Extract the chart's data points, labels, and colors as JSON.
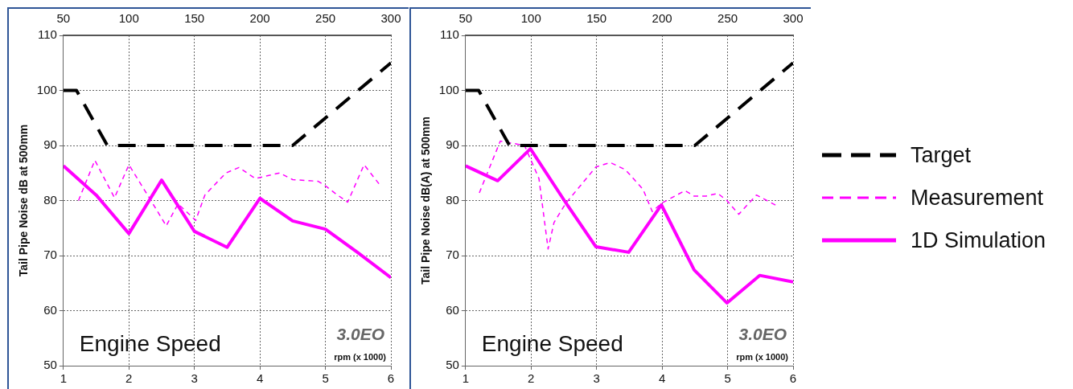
{
  "chart_data": [
    {
      "type": "line",
      "xlabel": "rpm (x 1000)",
      "ylabel": "Tail Pipe Noise dB at 500mm",
      "xlim": [
        1,
        6
      ],
      "xticks": [
        1,
        2,
        3,
        4,
        5,
        6
      ],
      "x2lim": [
        50,
        300
      ],
      "x2ticks": [
        50,
        100,
        150,
        200,
        250,
        300
      ],
      "ylim": [
        50,
        110
      ],
      "yticks": [
        50,
        60,
        70,
        80,
        90,
        100,
        110
      ],
      "grid": true,
      "legend": false,
      "annotations": [
        "Engine Speed",
        "3.0EO"
      ],
      "series": [
        {
          "color": "#000000",
          "line_style": "dashed",
          "x": [
            1,
            1.2,
            1.67,
            4.5,
            6
          ],
          "values": [
            100,
            100,
            90,
            90,
            105
          ]
        },
        {
          "color": "#ff00ff",
          "line_style": "dashed",
          "x": [
            1.23,
            1.48,
            1.78,
            2.0,
            2.3,
            2.57,
            2.75,
            3.02,
            3.16,
            3.48,
            3.68,
            3.93,
            4.3,
            4.5,
            4.89,
            5.02,
            5.16,
            5.34,
            5.59,
            5.84
          ],
          "values": [
            80,
            87.3,
            80.5,
            86.5,
            80.7,
            75.4,
            79.4,
            76.4,
            81,
            85,
            86,
            84,
            85,
            83.8,
            83.5,
            82.5,
            81.2,
            79.7,
            86.5,
            82.7
          ]
        },
        {
          "color": "#ff00ff",
          "line_style": "solid",
          "x": [
            1,
            1.5,
            2,
            2.5,
            3,
            3.5,
            4,
            4.5,
            5,
            5.5,
            6
          ],
          "values": [
            86.3,
            81,
            74,
            83.7,
            74.4,
            71.5,
            80.4,
            76.3,
            74.8,
            70.5,
            66
          ]
        }
      ]
    },
    {
      "type": "line",
      "xlabel": "rpm (x 1000)",
      "ylabel": "Tail Pipe Noise dB(A) at 500mm",
      "xlim": [
        1,
        6
      ],
      "xticks": [
        1,
        2,
        3,
        4,
        5,
        6
      ],
      "x2lim": [
        50,
        300
      ],
      "x2ticks": [
        50,
        100,
        150,
        200,
        250,
        300
      ],
      "ylim": [
        50,
        110
      ],
      "yticks": [
        50,
        60,
        70,
        80,
        90,
        100,
        110
      ],
      "grid": true,
      "legend": "right",
      "annotations": [
        "Engine Speed",
        "3.0EO"
      ],
      "series": [
        {
          "name": "Target",
          "color": "#000000",
          "line_style": "dashed",
          "x": [
            1,
            1.2,
            1.67,
            4.5,
            6
          ],
          "values": [
            100,
            100,
            90,
            90,
            105
          ]
        },
        {
          "name": "Measurement",
          "color": "#ff00ff",
          "line_style": "dashed",
          "x": [
            1.21,
            1.53,
            1.9,
            2.12,
            2.26,
            2.35,
            2.53,
            2.99,
            3.21,
            3.44,
            3.71,
            3.85,
            3.99,
            4.35,
            4.49,
            4.67,
            4.85,
            4.99,
            5.17,
            5.44,
            5.76
          ],
          "values": [
            81.4,
            90.8,
            90,
            84,
            71.2,
            76,
            79.5,
            86.1,
            86.9,
            85.6,
            82,
            78,
            79.5,
            81.8,
            80.8,
            80.8,
            81.3,
            80,
            77.5,
            81,
            79
          ]
        },
        {
          "name": "1D Simulation",
          "color": "#ff00ff",
          "line_style": "solid",
          "x": [
            1,
            1.49,
            1.99,
            2.53,
            2.99,
            3.49,
            3.99,
            4.49,
            4.99,
            5.49,
            6
          ],
          "values": [
            86.3,
            83.6,
            89.4,
            79.6,
            71.6,
            70.6,
            79.2,
            67.4,
            61.4,
            66.4,
            65.2
          ]
        }
      ]
    }
  ]
}
